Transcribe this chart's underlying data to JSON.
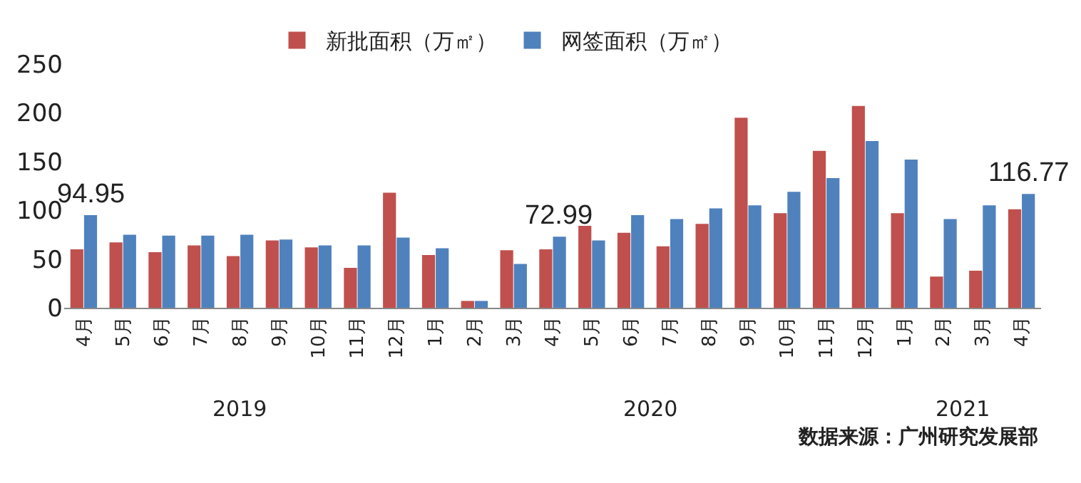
{
  "chart_data": {
    "type": "bar",
    "categories": [
      "4月",
      "5月",
      "6月",
      "7月",
      "8月",
      "9月",
      "10月",
      "11月",
      "12月",
      "1月",
      "2月",
      "3月",
      "4月",
      "5月",
      "6月",
      "7月",
      "8月",
      "9月",
      "10月",
      "11月",
      "12月",
      "1月",
      "2月",
      "3月",
      "4月"
    ],
    "series": [
      {
        "name": "新批面积（万㎡）",
        "color": "#c0504d",
        "values": [
          60,
          67,
          57,
          64,
          53,
          69,
          62,
          41,
          118,
          54,
          7,
          59,
          60,
          84,
          77,
          63,
          86,
          195,
          97,
          161,
          207,
          97,
          32,
          38,
          101
        ]
      },
      {
        "name": "网签面积（万㎡）",
        "color": "#4f81bd",
        "values": [
          94.95,
          75,
          74,
          74,
          75,
          70,
          64,
          64,
          72,
          61,
          7,
          45,
          72.99,
          69,
          95,
          91,
          102,
          105,
          119,
          133,
          171,
          152,
          91,
          105,
          116.77
        ],
        "value_labels": [
          "94.95",
          null,
          null,
          null,
          null,
          null,
          null,
          null,
          null,
          null,
          null,
          null,
          "72.99",
          null,
          null,
          null,
          null,
          null,
          null,
          null,
          null,
          null,
          null,
          null,
          "116.77"
        ]
      }
    ],
    "ylim": [
      0,
      250
    ],
    "yticks": [
      0,
      50,
      100,
      150,
      200,
      250
    ],
    "grid": false,
    "legend": "top",
    "annotations": [
      "2019",
      "2020",
      "2021",
      "数据来源：广州研究发展部"
    ]
  }
}
